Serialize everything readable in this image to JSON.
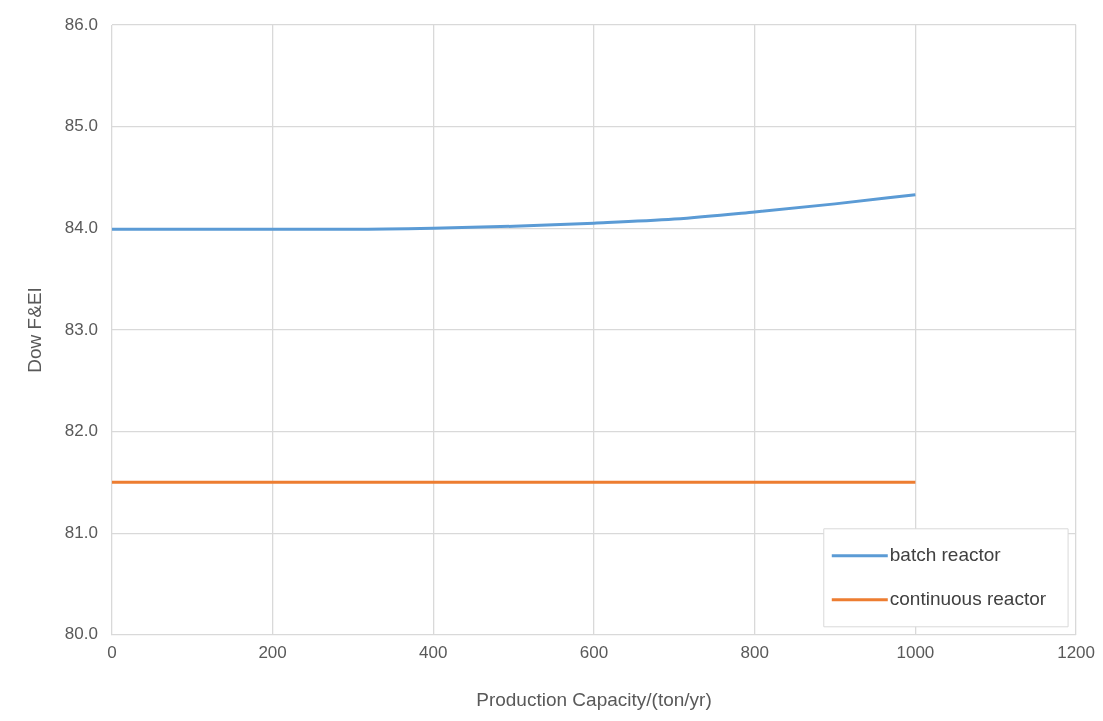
{
  "chart_data": {
    "type": "line",
    "xlabel": "Production Capacity/(ton/yr)",
    "ylabel": "Dow F&EI",
    "x": [
      0,
      100,
      200,
      300,
      400,
      500,
      600,
      700,
      800,
      900,
      1000
    ],
    "series": [
      {
        "name": "batch reactor",
        "color": "#5b9bd5",
        "values": [
          83.99,
          83.99,
          83.99,
          83.99,
          84.0,
          84.02,
          84.05,
          84.09,
          84.16,
          84.24,
          84.33
        ]
      },
      {
        "name": "continuous reactor",
        "color": "#ed7d31",
        "values": [
          81.5,
          81.5,
          81.5,
          81.5,
          81.5,
          81.5,
          81.5,
          81.5,
          81.5,
          81.5,
          81.5
        ]
      }
    ],
    "xlim": [
      0,
      1200
    ],
    "xticks": [
      0,
      200,
      400,
      600,
      800,
      1000,
      1200
    ],
    "ylim": [
      80,
      86
    ],
    "yticks": [
      {
        "value": 80,
        "label": "80.0"
      },
      {
        "value": 81,
        "label": "81.0"
      },
      {
        "value": 82,
        "label": "82.0"
      },
      {
        "value": 83,
        "label": "83.0"
      },
      {
        "value": 84,
        "label": "84.0"
      },
      {
        "value": 85,
        "label": "85.0"
      },
      {
        "value": 86,
        "label": "86.0"
      }
    ],
    "grid": true,
    "legend": "bottom right",
    "marker": "none",
    "line_style": "solid"
  }
}
